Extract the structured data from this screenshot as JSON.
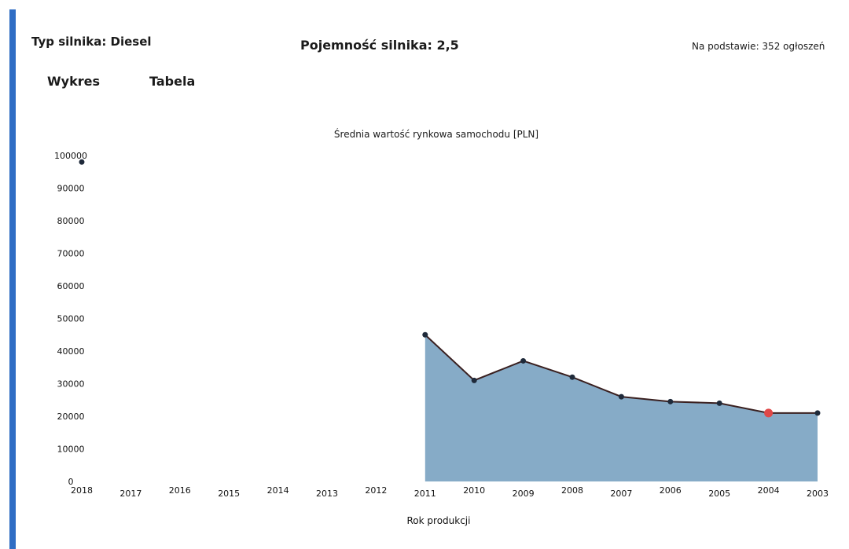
{
  "header": {
    "engine_type": "Typ silnika: Diesel",
    "engine_capacity": "Pojemność silnika: 2,5",
    "listings_note": "Na podstawie: 352 ogłoszeń"
  },
  "tabs": [
    {
      "label": "Wykres",
      "active": true
    },
    {
      "label": "Tabela",
      "active": false
    }
  ],
  "colors": {
    "accent": "#2f6dc4",
    "area_fill": "#7fa6c4",
    "line": "#3a2020",
    "point": "#1f2a3a",
    "highlight_point": "#e04848"
  },
  "chart_data": {
    "type": "area",
    "title": "Średnia wartość rynkowa samochodu [PLN]",
    "xlabel": "Rok produkcji",
    "ylabel": "",
    "categories": [
      "2018",
      "2017",
      "2016",
      "2015",
      "2014",
      "2013",
      "2012",
      "2011",
      "2010",
      "2009",
      "2008",
      "2007",
      "2006",
      "2005",
      "2004",
      "2003"
    ],
    "yticks": [
      "0",
      "10000",
      "20000",
      "30000",
      "40000",
      "50000",
      "60000",
      "70000",
      "80000",
      "90000",
      "100000"
    ],
    "ylim": [
      0,
      100000
    ],
    "series": [
      {
        "values": [
          98000,
          null,
          null,
          null,
          null,
          null,
          null,
          45000,
          31000,
          37000,
          32000,
          26000,
          24500,
          24000,
          21000,
          21000
        ]
      }
    ],
    "highlighted": "2004",
    "grid": false,
    "legend": "none"
  }
}
